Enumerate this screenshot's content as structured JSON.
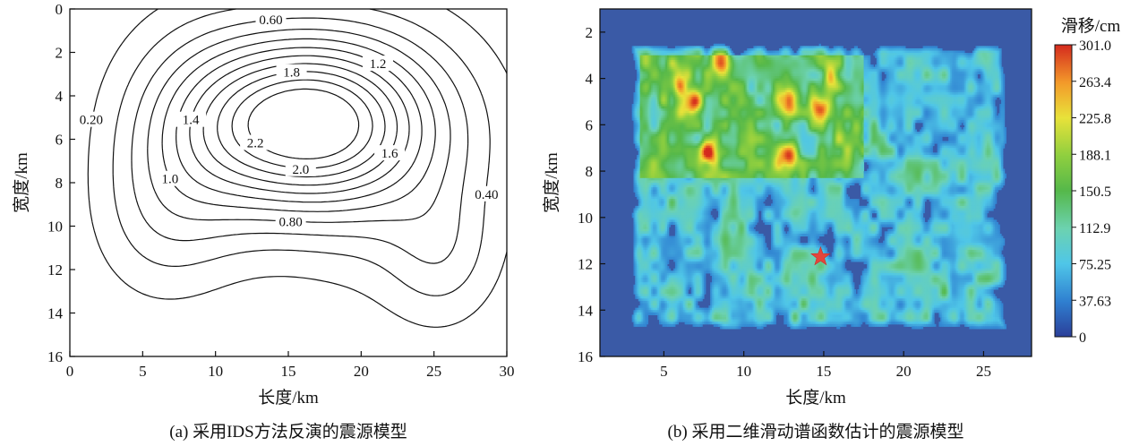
{
  "figure": {
    "caption_a": "(a) 采用IDS方法反演的震源模型",
    "caption_b": "(b) 采用二维滑动谱函数估计的震源模型"
  },
  "colors": {
    "background": "#ffffff",
    "contour_line": "#111111",
    "heatmap_low": "#3a5aa6",
    "heatmap_high": "#d42a1e",
    "hypocenter_star": "#e4463a"
  },
  "chart_data": [
    {
      "type": "contour",
      "panel": "a",
      "xlabel": "长度/km",
      "ylabel": "宽度/km",
      "xlim": [
        0,
        30
      ],
      "ylim": [
        16,
        0
      ],
      "y_inverted": true,
      "xticks": [
        "0",
        "5",
        "10",
        "15",
        "20",
        "25",
        "30"
      ],
      "yticks": [
        "0",
        "2",
        "4",
        "6",
        "8",
        "10",
        "12",
        "14",
        "16"
      ],
      "grid": false,
      "levels": [
        {
          "value": 0.2,
          "label": "0.20"
        },
        {
          "value": 0.4,
          "label": "0.40"
        },
        {
          "value": 0.6,
          "label": "0.60"
        },
        {
          "value": 0.8,
          "label": "0.80"
        },
        {
          "value": 1.0,
          "label": "1.0"
        },
        {
          "value": 1.2,
          "label": "1.2"
        },
        {
          "value": 1.4,
          "label": "1.4"
        },
        {
          "value": 1.6,
          "label": "1.6"
        },
        {
          "value": 1.8,
          "label": "1.8"
        },
        {
          "value": 2.0,
          "label": "2.0"
        },
        {
          "value": 2.2,
          "label": "2.2"
        }
      ],
      "peak": {
        "x": 16.5,
        "y": 5.1
      }
    },
    {
      "type": "heatmap",
      "panel": "b",
      "xlabel": "长度/km",
      "ylabel": "宽度/km",
      "xlim": [
        1,
        28
      ],
      "ylim": [
        16,
        1
      ],
      "y_inverted": true,
      "xticks": [
        "5",
        "10",
        "15",
        "20",
        "25"
      ],
      "yticks": [
        "2",
        "4",
        "6",
        "8",
        "10",
        "12",
        "14",
        "16"
      ],
      "colorbar": {
        "title": "滑移/cm",
        "min": 0,
        "max": 301.0,
        "ticks": [
          "301.0",
          "263.4",
          "225.8",
          "188.1",
          "150.5",
          "112.9",
          "75.25",
          "37.63",
          "0"
        ]
      },
      "hypocenter": {
        "x": 14.8,
        "y": 11.7
      },
      "high_slip_zones": [
        {
          "x": 6.8,
          "y": 5.0,
          "slip": 290
        },
        {
          "x": 7.8,
          "y": 7.2,
          "slip": 295
        },
        {
          "x": 8.6,
          "y": 3.3,
          "slip": 265
        },
        {
          "x": 12.8,
          "y": 5.0,
          "slip": 295
        },
        {
          "x": 12.8,
          "y": 7.3,
          "slip": 300
        },
        {
          "x": 14.8,
          "y": 5.3,
          "slip": 270
        },
        {
          "x": 6.0,
          "y": 4.0,
          "slip": 230
        },
        {
          "x": 15.5,
          "y": 4.0,
          "slip": 230
        }
      ]
    }
  ]
}
